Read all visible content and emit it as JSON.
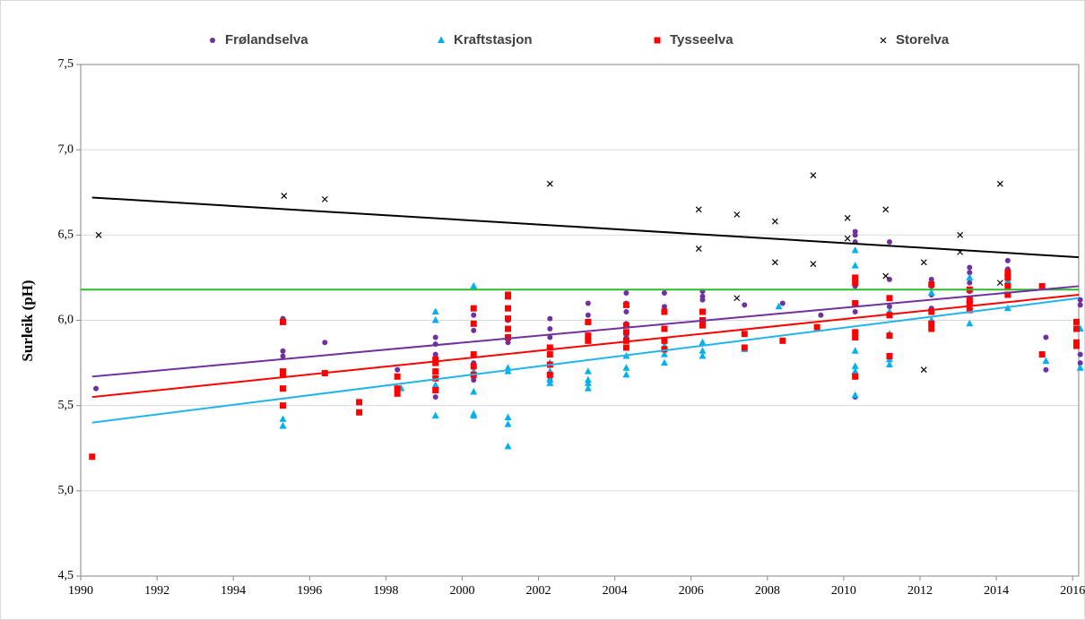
{
  "chart_data": {
    "type": "scatter",
    "y_label": "Surleik (pH)",
    "xlim": [
      1990,
      2016.16
    ],
    "ylim": [
      4.5,
      7.5
    ],
    "xticks": [
      1990,
      1992,
      1994,
      1996,
      1998,
      2000,
      2002,
      2004,
      2006,
      2008,
      2010,
      2012,
      2014,
      2016
    ],
    "yticks": [
      {
        "value": 4.5,
        "label": "4,5"
      },
      {
        "value": 5.0,
        "label": "5,0"
      },
      {
        "value": 5.5,
        "label": "5,5"
      },
      {
        "value": 6.0,
        "label": "6,0"
      },
      {
        "value": 6.5,
        "label": "6,5"
      },
      {
        "value": 7.0,
        "label": "7,0"
      },
      {
        "value": 7.5,
        "label": "7,5"
      }
    ],
    "grid": true,
    "hlines": [
      {
        "value": 6.18,
        "color": "#2dbb2d"
      }
    ],
    "series": [
      {
        "name": "Frølandselva",
        "color": "#7030a0",
        "marker": "circle",
        "x": [
          1990.4,
          1995.3,
          1995.3,
          1995.3,
          1996.4,
          1998.3,
          1999.3,
          1999.3,
          1999.3,
          1999.3,
          2000.3,
          2000.3,
          2000.3,
          2000.3,
          2001.2,
          2001.2,
          2001.2,
          2001.2,
          2002.3,
          2002.3,
          2002.3,
          2002.3,
          2003.3,
          2003.3,
          2003.3,
          2004.3,
          2004.3,
          2004.3,
          2004.3,
          2004.3,
          2005.3,
          2005.3,
          2005.3,
          2006.3,
          2006.3,
          2006.3,
          2007.4,
          2008.4,
          2009.4,
          2010.3,
          2010.3,
          2010.3,
          2010.3,
          2010.3,
          2010.3,
          2011.2,
          2011.2,
          2011.2,
          2011.2,
          2012.3,
          2012.3,
          2012.3,
          2012.3,
          2013.3,
          2013.3,
          2013.3,
          2013.3,
          2014.3,
          2014.3,
          2014.3,
          2014.3,
          2015.3,
          2015.3,
          2016.2,
          2016.2,
          2016.2,
          2016.2
        ],
        "values": [
          5.6,
          6.01,
          5.82,
          5.79,
          5.87,
          5.71,
          5.9,
          5.86,
          5.8,
          5.55,
          6.03,
          5.94,
          5.75,
          5.65,
          6.0,
          5.95,
          5.9,
          5.87,
          6.01,
          5.95,
          5.9,
          5.65,
          6.1,
          6.03,
          5.9,
          6.16,
          6.1,
          6.05,
          5.98,
          5.9,
          6.16,
          6.08,
          5.95,
          6.17,
          6.14,
          6.12,
          6.09,
          6.1,
          6.03,
          6.52,
          6.5,
          6.46,
          6.2,
          6.05,
          5.55,
          6.46,
          6.24,
          6.13,
          6.08,
          6.24,
          6.2,
          6.15,
          6.07,
          6.31,
          6.28,
          6.22,
          6.17,
          6.35,
          6.3,
          6.25,
          6.15,
          5.9,
          5.71,
          6.12,
          6.09,
          5.8,
          5.75
        ],
        "trend": {
          "x": [
            1990.3,
            2016.16
          ],
          "values": [
            5.67,
            6.2
          ]
        }
      },
      {
        "name": "Kraftstasjon",
        "color": "#00b0f0",
        "marker": "triangle",
        "x": [
          1995.3,
          1995.3,
          1995.3,
          1998.4,
          1999.3,
          1999.3,
          1999.3,
          1999.3,
          1999.3,
          2000.3,
          2000.3,
          2000.3,
          2000.3,
          2000.3,
          2001.2,
          2001.2,
          2001.2,
          2001.2,
          2001.2,
          2002.3,
          2002.3,
          2002.3,
          2002.3,
          2003.3,
          2003.3,
          2003.3,
          2003.3,
          2004.3,
          2004.3,
          2004.3,
          2005.3,
          2005.3,
          2005.3,
          2006.3,
          2006.3,
          2006.3,
          2007.4,
          2008.3,
          2010.3,
          2010.3,
          2010.3,
          2010.3,
          2010.3,
          2010.3,
          2011.2,
          2011.2,
          2011.2,
          2011.2,
          2012.3,
          2012.3,
          2013.3,
          2013.3,
          2013.3,
          2014.3,
          2014.3,
          2015.3,
          2016.2,
          2016.2
        ],
        "values": [
          5.42,
          5.38,
          5.38,
          5.6,
          6.05,
          6.0,
          5.7,
          5.62,
          5.44,
          6.2,
          5.7,
          5.58,
          5.45,
          5.44,
          5.72,
          5.7,
          5.43,
          5.39,
          5.26,
          5.75,
          5.7,
          5.65,
          5.63,
          5.7,
          5.65,
          5.63,
          5.6,
          5.79,
          5.72,
          5.68,
          5.85,
          5.8,
          5.75,
          5.87,
          5.82,
          5.79,
          5.83,
          6.08,
          6.41,
          6.32,
          5.82,
          5.73,
          5.7,
          5.56,
          6.05,
          5.92,
          5.77,
          5.74,
          6.16,
          6.0,
          6.25,
          6.06,
          5.98,
          6.23,
          6.07,
          5.76,
          5.95,
          5.72
        ],
        "trend": {
          "x": [
            1990.3,
            2016.16
          ],
          "values": [
            5.4,
            6.13
          ]
        }
      },
      {
        "name": "Tysseelva",
        "color": "#ff0000",
        "marker": "square",
        "x": [
          1990.3,
          1995.3,
          1995.3,
          1995.3,
          1995.3,
          1995.3,
          1996.4,
          1997.3,
          1997.3,
          1998.3,
          1998.3,
          1998.3,
          1999.3,
          1999.3,
          1999.3,
          1999.3,
          1999.3,
          2000.3,
          2000.3,
          2000.3,
          2000.3,
          2000.3,
          2001.2,
          2001.2,
          2001.2,
          2001.2,
          2001.2,
          2001.2,
          2002.3,
          2002.3,
          2002.3,
          2002.3,
          2003.3,
          2003.3,
          2003.3,
          2004.3,
          2004.3,
          2004.3,
          2004.3,
          2004.3,
          2005.3,
          2005.3,
          2005.3,
          2005.3,
          2006.3,
          2006.3,
          2006.3,
          2007.4,
          2007.4,
          2008.4,
          2009.3,
          2010.3,
          2010.3,
          2010.3,
          2010.3,
          2010.3,
          2010.3,
          2011.2,
          2011.2,
          2011.2,
          2011.2,
          2012.3,
          2012.3,
          2012.3,
          2012.3,
          2013.3,
          2013.3,
          2013.3,
          2013.3,
          2014.3,
          2014.3,
          2014.3,
          2014.3,
          2015.2,
          2015.2,
          2016.1,
          2016.1,
          2016.1,
          2016.1
        ],
        "values": [
          5.2,
          5.99,
          5.7,
          5.68,
          5.6,
          5.5,
          5.69,
          5.52,
          5.46,
          5.67,
          5.6,
          5.57,
          5.77,
          5.75,
          5.7,
          5.66,
          5.59,
          6.07,
          5.98,
          5.8,
          5.73,
          5.68,
          6.15,
          6.14,
          6.07,
          6.01,
          5.95,
          5.9,
          5.84,
          5.8,
          5.74,
          5.68,
          5.99,
          5.91,
          5.88,
          6.09,
          5.97,
          5.93,
          5.88,
          5.84,
          6.05,
          5.95,
          5.88,
          5.83,
          6.05,
          6.0,
          5.97,
          5.92,
          5.84,
          5.88,
          5.96,
          6.25,
          6.22,
          6.1,
          5.93,
          5.9,
          5.67,
          6.13,
          6.03,
          5.91,
          5.79,
          6.21,
          6.05,
          5.98,
          5.95,
          6.18,
          6.12,
          6.1,
          6.06,
          6.28,
          6.25,
          6.2,
          6.15,
          6.2,
          5.8,
          5.99,
          5.95,
          5.87,
          5.85
        ],
        "trend": {
          "x": [
            1990.3,
            2016.16
          ],
          "values": [
            5.55,
            6.15
          ]
        }
      },
      {
        "name": "Storelva",
        "color": "#000000",
        "marker": "x",
        "x": [
          1990.47,
          1995.33,
          1996.4,
          2002.3,
          2006.2,
          2006.2,
          2007.2,
          2007.2,
          2008.2,
          2008.2,
          2009.2,
          2009.2,
          2010.1,
          2010.1,
          2011.1,
          2011.1,
          2012.1,
          2012.1,
          2013.05,
          2013.05,
          2014.1,
          2014.1
        ],
        "values": [
          6.5,
          6.73,
          6.71,
          6.8,
          6.65,
          6.42,
          6.62,
          6.13,
          6.58,
          6.34,
          6.85,
          6.33,
          6.6,
          6.48,
          6.65,
          6.26,
          5.71,
          6.34,
          6.5,
          6.4,
          6.8,
          6.22
        ],
        "trend": {
          "x": [
            1990.3,
            2016.16
          ],
          "values": [
            6.72,
            6.37
          ]
        }
      }
    ]
  }
}
